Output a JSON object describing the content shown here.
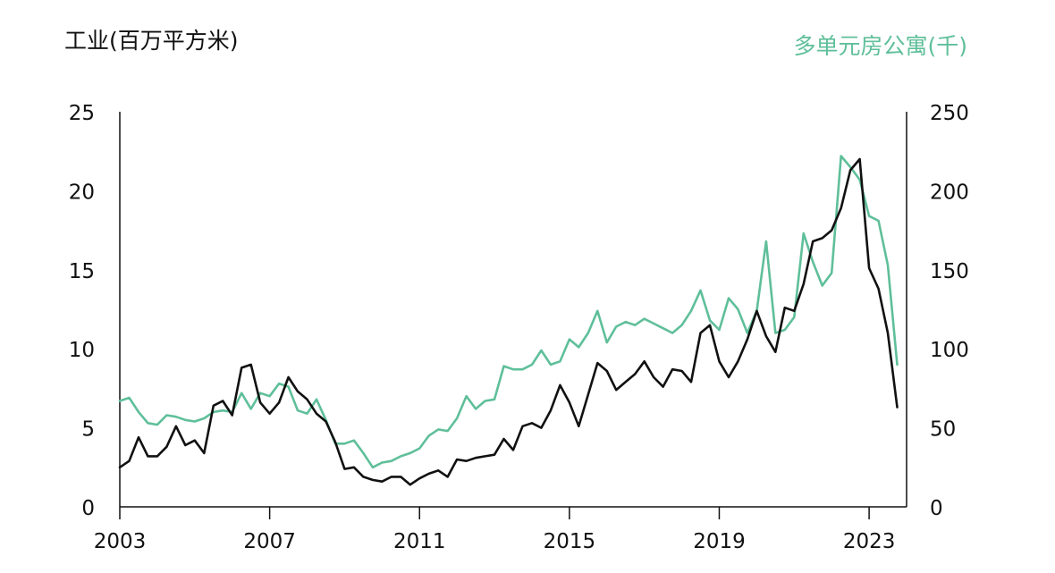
{
  "chart_data": {
    "type": "line",
    "left_axis_label": "工业(百万平方米)",
    "right_axis_label": "多单元房公寓(千)",
    "x_ticks": [
      "2003",
      "2007",
      "2011",
      "2015",
      "2019",
      "2023"
    ],
    "y_left_ticks": [
      "0",
      "5",
      "10",
      "15",
      "20",
      "25"
    ],
    "y_right_ticks": [
      "0",
      "50",
      "100",
      "150",
      "200",
      "250"
    ],
    "y_left_lim": [
      0,
      25
    ],
    "y_right_lim": [
      0,
      250
    ],
    "x_lim": [
      2003.0,
      2024.0
    ],
    "grid": false,
    "colors": {
      "industrial": "#111111",
      "multifamily": "#5fbf9a",
      "axis": "#111111"
    },
    "series": [
      {
        "axis": "left",
        "color": "#111111",
        "x": [
          2003.0,
          2003.25,
          2003.5,
          2003.75,
          2004.0,
          2004.25,
          2004.5,
          2004.75,
          2005.0,
          2005.25,
          2005.5,
          2005.75,
          2006.0,
          2006.25,
          2006.5,
          2006.75,
          2007.0,
          2007.25,
          2007.5,
          2007.75,
          2008.0,
          2008.25,
          2008.5,
          2008.75,
          2009.0,
          2009.25,
          2009.5,
          2009.75,
          2010.0,
          2010.25,
          2010.5,
          2010.75,
          2011.0,
          2011.25,
          2011.5,
          2011.75,
          2012.0,
          2012.25,
          2012.5,
          2012.75,
          2013.0,
          2013.25,
          2013.5,
          2013.75,
          2014.0,
          2014.25,
          2014.5,
          2014.75,
          2015.0,
          2015.25,
          2015.5,
          2015.75,
          2016.0,
          2016.25,
          2016.5,
          2016.75,
          2017.0,
          2017.25,
          2017.5,
          2017.75,
          2018.0,
          2018.25,
          2018.5,
          2018.75,
          2019.0,
          2019.25,
          2019.5,
          2019.75,
          2020.0,
          2020.25,
          2020.5,
          2020.75,
          2021.0,
          2021.25,
          2021.5,
          2021.75,
          2022.0,
          2022.25,
          2022.5,
          2022.75,
          2023.0,
          2023.25,
          2023.5,
          2023.75
        ],
        "values": [
          2.5,
          2.9,
          4.4,
          3.2,
          3.2,
          3.8,
          5.1,
          3.9,
          4.2,
          3.4,
          6.4,
          6.7,
          5.8,
          8.8,
          9.0,
          6.6,
          5.9,
          6.6,
          8.2,
          7.3,
          6.8,
          5.9,
          5.4,
          4.1,
          2.4,
          2.5,
          1.9,
          1.7,
          1.6,
          1.9,
          1.9,
          1.4,
          1.8,
          2.1,
          2.3,
          1.9,
          3.0,
          2.9,
          3.1,
          3.2,
          3.3,
          4.3,
          3.6,
          5.1,
          5.3,
          5.0,
          6.1,
          7.7,
          6.6,
          5.1,
          7.1,
          9.1,
          8.6,
          7.4,
          7.9,
          8.4,
          9.2,
          8.2,
          7.6,
          8.7,
          8.6,
          7.9,
          11.0,
          11.5,
          9.2,
          8.2,
          9.2,
          10.6,
          12.4,
          10.8,
          9.8,
          12.6,
          12.4,
          14.1,
          16.8,
          17.0,
          17.5,
          18.9,
          21.3,
          22.0,
          15.1,
          13.8,
          11.0,
          6.3
        ]
      },
      {
        "axis": "right",
        "color": "#5fbf9a",
        "x": [
          2003.0,
          2003.25,
          2003.5,
          2003.75,
          2004.0,
          2004.25,
          2004.5,
          2004.75,
          2005.0,
          2005.25,
          2005.5,
          2005.75,
          2006.0,
          2006.25,
          2006.5,
          2006.75,
          2007.0,
          2007.25,
          2007.5,
          2007.75,
          2008.0,
          2008.25,
          2008.5,
          2008.75,
          2009.0,
          2009.25,
          2009.5,
          2009.75,
          2010.0,
          2010.25,
          2010.5,
          2010.75,
          2011.0,
          2011.25,
          2011.5,
          2011.75,
          2012.0,
          2012.25,
          2012.5,
          2012.75,
          2013.0,
          2013.25,
          2013.5,
          2013.75,
          2014.0,
          2014.25,
          2014.5,
          2014.75,
          2015.0,
          2015.25,
          2015.5,
          2015.75,
          2016.0,
          2016.25,
          2016.5,
          2016.75,
          2017.0,
          2017.25,
          2017.5,
          2017.75,
          2018.0,
          2018.25,
          2018.5,
          2018.75,
          2019.0,
          2019.25,
          2019.5,
          2019.75,
          2020.0,
          2020.25,
          2020.5,
          2020.75,
          2021.0,
          2021.25,
          2021.5,
          2021.75,
          2022.0,
          2022.25,
          2022.5,
          2022.75,
          2023.0,
          2023.25,
          2023.5,
          2023.75
        ],
        "values": [
          67,
          69,
          60,
          53,
          52,
          58,
          57,
          55,
          54,
          56,
          60,
          61,
          60,
          72,
          62,
          72,
          70,
          78,
          76,
          61,
          59,
          68,
          55,
          40,
          40,
          42,
          34,
          25,
          28,
          29,
          32,
          34,
          37,
          45,
          49,
          48,
          56,
          70,
          62,
          67,
          68,
          89,
          87,
          87,
          90,
          99,
          90,
          92,
          106,
          101,
          110,
          124,
          104,
          114,
          117,
          115,
          119,
          116,
          113,
          110,
          115,
          124,
          137,
          118,
          112,
          132,
          125,
          110,
          124,
          168,
          110,
          112,
          120,
          173,
          155,
          140,
          148,
          222,
          215,
          207,
          184,
          181,
          153,
          90
        ]
      }
    ]
  }
}
